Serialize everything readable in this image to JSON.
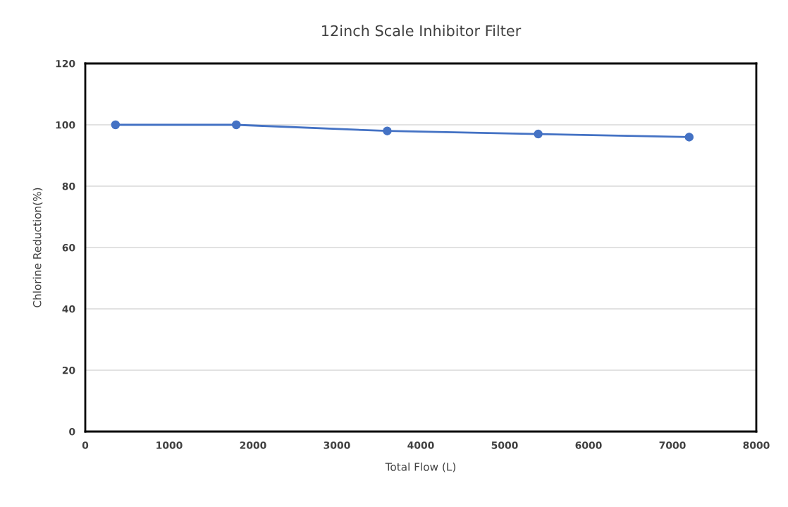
{
  "chart_data": {
    "type": "line",
    "title": "12inch Scale Inhibitor Filter",
    "xlabel": "Total Flow (L)",
    "ylabel": "Chlorine Reduction(%)",
    "x": [
      360,
      1800,
      3600,
      5400,
      7200
    ],
    "series": [
      {
        "color": "#4472c4",
        "values": [
          100,
          100,
          98,
          97,
          96
        ]
      }
    ],
    "xlim": [
      0,
      8000
    ],
    "xticks": [
      0,
      1000,
      2000,
      3000,
      4000,
      5000,
      6000,
      7000,
      8000
    ],
    "ylim": [
      0,
      120
    ],
    "yticks": [
      0,
      20,
      40,
      60,
      80,
      100,
      120
    ],
    "grid": "y",
    "marker": "circle",
    "line_style": "solid"
  }
}
